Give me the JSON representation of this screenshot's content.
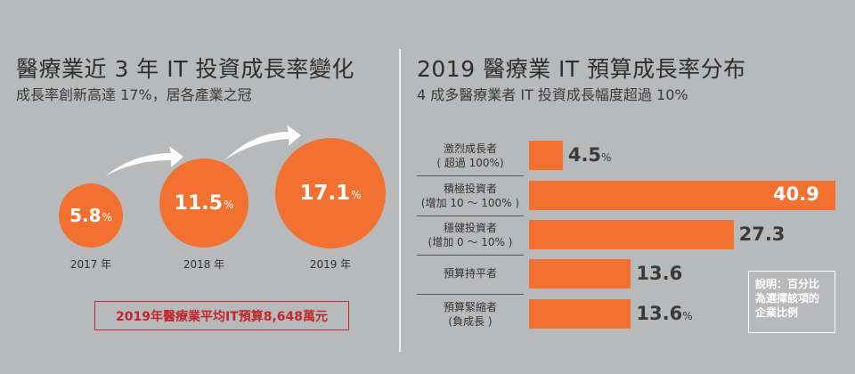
{
  "left": {
    "title": "醫療業近 3 年 IT 投資成長率變化",
    "subtitle": "成長率創新高達 17%，居各產業之冠",
    "budget_note": "2019年醫療業平均IT預算8,648萬元"
  },
  "right": {
    "title": "2019 醫療業 IT 預算成長率分布",
    "subtitle": "4 成多醫療業者 IT 投資成長幅度超過 10%",
    "note": "說明：百分比為選擇該項的企業比例"
  },
  "pct_sign": "%",
  "colors": {
    "accent": "#f37130",
    "background": "#b8b9bb",
    "budget_red": "#c0282d"
  },
  "chart_data": [
    {
      "type": "bubble",
      "title": "醫療業近 3 年 IT 投資成長率變化",
      "categories": [
        "2017 年",
        "2018 年",
        "2019 年"
      ],
      "values": [
        5.8,
        11.5,
        17.1
      ],
      "labels": [
        "5.8",
        "11.5",
        "17.1"
      ],
      "unit": "%"
    },
    {
      "type": "bar",
      "orientation": "horizontal",
      "title": "2019 醫療業 IT 預算成長率分布",
      "categories": [
        [
          "激烈成長者",
          "( 超過 100%)"
        ],
        [
          "積極投資者",
          "(增加 10 ～ 100% )"
        ],
        [
          "穩健投資者",
          "(增加 0 ～ 10% )"
        ],
        [
          "預算持平者",
          ""
        ],
        [
          "預算緊縮者",
          "(負成長 )"
        ]
      ],
      "values": [
        4.5,
        40.9,
        27.3,
        13.6,
        13.6
      ],
      "labels": [
        "4.5",
        "40.9",
        "27.3",
        "13.6",
        "13.6"
      ],
      "unit": "%"
    }
  ]
}
